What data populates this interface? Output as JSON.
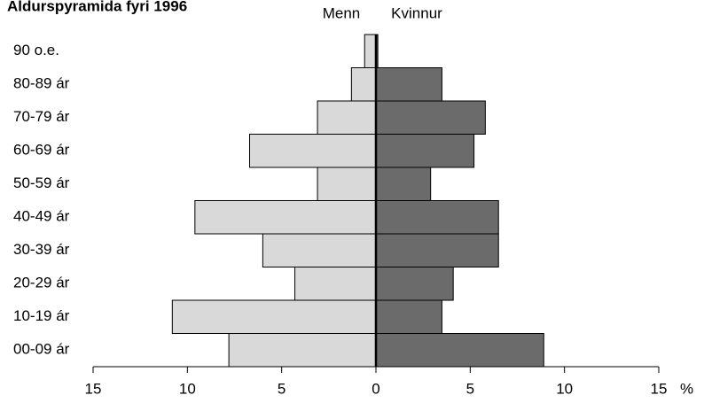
{
  "chart_data": {
    "type": "pyramid",
    "title": "Aldurspyramida fyri 1996",
    "categories": [
      "90 o.e.",
      "80-89 ár",
      "70-79 ár",
      "60-69 ár",
      "50-59 ár",
      "40-49 ár",
      "30-39 ár",
      "20-29 ár",
      "10-19 ár",
      "00-09 ár"
    ],
    "series": [
      {
        "name": "Menn",
        "color": "#d9d9d9",
        "values": [
          -0.6,
          -1.3,
          -3.1,
          -6.7,
          -3.1,
          -9.6,
          -6.0,
          -4.3,
          -10.8,
          -7.8
        ]
      },
      {
        "name": "Kvinnur",
        "color": "#6b6b6b",
        "values": [
          0.1,
          3.5,
          5.8,
          5.2,
          2.9,
          6.5,
          6.5,
          4.1,
          3.5,
          8.9
        ]
      }
    ],
    "xlim": [
      -15,
      15
    ],
    "xticks": [
      {
        "value": -15,
        "label": "15"
      },
      {
        "value": -10,
        "label": "10"
      },
      {
        "value": -5,
        "label": "5"
      },
      0,
      5,
      10,
      15
    ],
    "x_unit": "%"
  }
}
